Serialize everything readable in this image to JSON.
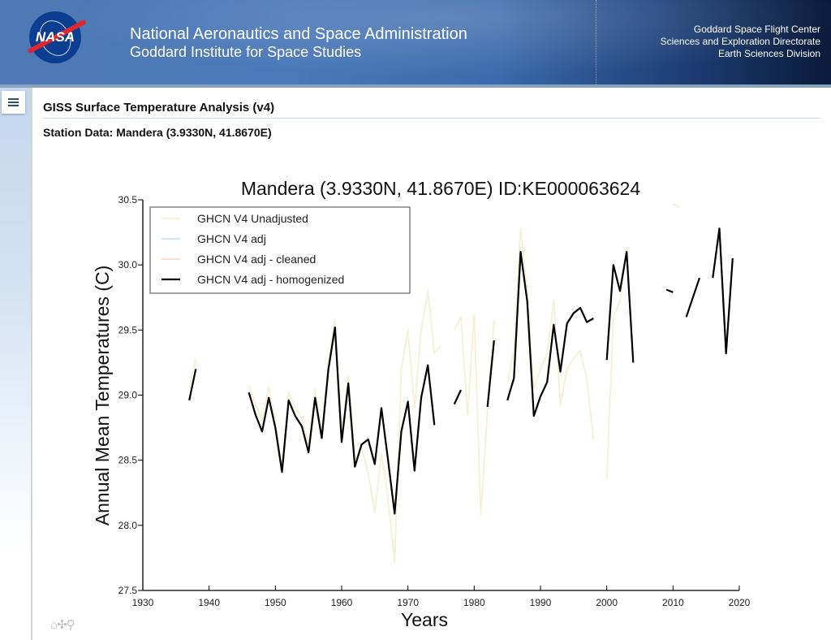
{
  "header": {
    "org_title": "National Aeronautics and Space Administration",
    "org_subtitle": "Goddard Institute for Space Studies",
    "logo_text": "NASA",
    "right_lines": [
      "Goddard Space Flight Center",
      "Sciences and Exploration Directorate",
      "Earth Sciences Division"
    ]
  },
  "page": {
    "title": "GISS Surface Temperature Analysis (v4)",
    "station_title": "Station Data: Mandera (3.9330N, 41.8670E)",
    "menu_icon": "hamburger-menu-icon"
  },
  "toolbar": {
    "icons": [
      "home-icon",
      "pan-icon",
      "zoom-icon"
    ],
    "home_glyph": "⌂",
    "pan_glyph": "✣",
    "zoom_glyph": "⚲"
  },
  "colors": {
    "unadjusted": "#f5f0d2",
    "adj": "#cfdcf0",
    "cleaned": "#f4d8d0",
    "homogenized": "#000000"
  },
  "chart_data": {
    "type": "line",
    "title": "Mandera (3.9330N, 41.8670E) ID:KE000063624",
    "xlabel": "Years",
    "ylabel": "Annual Mean Temperatures (C)",
    "xlim": [
      1930,
      2020
    ],
    "ylim": [
      27.5,
      30.5
    ],
    "xticks": [
      "1930",
      "1940",
      "1950",
      "1960",
      "1970",
      "1980",
      "1990",
      "2000",
      "2010",
      "2020"
    ],
    "yticks": [
      "27.5",
      "28.0",
      "28.5",
      "29.0",
      "29.5",
      "30.0",
      "30.5"
    ],
    "grid": false,
    "legend_position": "top-left",
    "series": [
      {
        "name": "GHCN V4 Unadjusted",
        "color_key": "unadjusted",
        "segments": [
          [
            [
              1937,
              29.05
            ],
            [
              1938,
              29.28
            ]
          ],
          [
            [
              1946,
              29.08
            ],
            [
              1947,
              28.93
            ],
            [
              1948,
              28.8
            ],
            [
              1949,
              29.06
            ],
            [
              1950,
              28.8
            ],
            [
              1951,
              28.45
            ],
            [
              1952,
              29.02
            ],
            [
              1953,
              28.9
            ],
            [
              1954,
              28.82
            ],
            [
              1955,
              28.62
            ],
            [
              1956,
              29.05
            ],
            [
              1957,
              28.72
            ],
            [
              1958,
              29.26
            ],
            [
              1959,
              29.58
            ],
            [
              1960,
              28.7
            ],
            [
              1961,
              29.15
            ],
            [
              1962,
              28.5
            ],
            [
              1963,
              28.6
            ],
            [
              1964,
              28.4
            ],
            [
              1965,
              28.1
            ],
            [
              1966,
              28.55
            ],
            [
              1967,
              28.2
            ],
            [
              1968,
              27.72
            ],
            [
              1969,
              29.2
            ],
            [
              1970,
              29.5
            ],
            [
              1971,
              28.9
            ],
            [
              1972,
              29.5
            ],
            [
              1973,
              29.8
            ],
            [
              1974,
              29.32
            ],
            [
              1975,
              29.38
            ]
          ],
          [
            [
              1977,
              29.5
            ],
            [
              1978,
              29.6
            ],
            [
              1979,
              28.85
            ],
            [
              1980,
              29.62
            ],
            [
              1981,
              28.08
            ],
            [
              1982,
              28.88
            ],
            [
              1983,
              29.58
            ]
          ],
          [
            [
              1985,
              29.1
            ],
            [
              1986,
              29.35
            ],
            [
              1987,
              30.28
            ],
            [
              1988,
              29.8
            ],
            [
              1989,
              29.05
            ],
            [
              1990,
              29.2
            ],
            [
              1991,
              29.32
            ],
            [
              1992,
              29.73
            ],
            [
              1993,
              28.92
            ],
            [
              1994,
              29.2
            ],
            [
              1995,
              29.28
            ],
            [
              1996,
              29.34
            ],
            [
              1997,
              29.12
            ],
            [
              1998,
              28.66
            ]
          ],
          [
            [
              2000,
              28.35
            ],
            [
              2001,
              29.6
            ],
            [
              2002,
              29.72
            ],
            [
              2003,
              30.14
            ]
          ],
          [
            [
              2010,
              30.47
            ],
            [
              2011,
              30.44
            ]
          ]
        ]
      },
      {
        "name": "GHCN V4 adj",
        "color_key": "adj",
        "segments": []
      },
      {
        "name": "GHCN V4 adj - cleaned",
        "color_key": "cleaned",
        "segments": []
      },
      {
        "name": "GHCN V4 adj - homogenized",
        "color_key": "homogenized",
        "segments": [
          [
            [
              1937,
              28.96
            ],
            [
              1938,
              29.2
            ]
          ],
          [
            [
              1946,
              29.02
            ],
            [
              1947,
              28.85
            ],
            [
              1948,
              28.72
            ],
            [
              1949,
              28.98
            ],
            [
              1950,
              28.75
            ],
            [
              1951,
              28.41
            ],
            [
              1952,
              28.96
            ],
            [
              1953,
              28.84
            ],
            [
              1954,
              28.76
            ],
            [
              1955,
              28.56
            ],
            [
              1956,
              28.98
            ],
            [
              1957,
              28.67
            ],
            [
              1958,
              29.2
            ],
            [
              1959,
              29.52
            ],
            [
              1960,
              28.64
            ],
            [
              1961,
              29.09
            ],
            [
              1962,
              28.45
            ],
            [
              1963,
              28.62
            ],
            [
              1964,
              28.66
            ],
            [
              1965,
              28.47
            ],
            [
              1966,
              28.9
            ],
            [
              1967,
              28.5
            ],
            [
              1968,
              28.09
            ],
            [
              1969,
              28.72
            ],
            [
              1970,
              28.95
            ],
            [
              1971,
              28.42
            ],
            [
              1972,
              28.98
            ],
            [
              1973,
              29.23
            ],
            [
              1974,
              28.77
            ]
          ],
          [
            [
              1977,
              28.93
            ],
            [
              1978,
              29.04
            ]
          ],
          [
            [
              1982,
              28.91
            ],
            [
              1983,
              29.42
            ]
          ],
          [
            [
              1985,
              28.96
            ],
            [
              1986,
              29.13
            ],
            [
              1987,
              30.1
            ],
            [
              1988,
              29.72
            ],
            [
              1989,
              28.84
            ],
            [
              1990,
              28.99
            ],
            [
              1991,
              29.1
            ],
            [
              1992,
              29.54
            ],
            [
              1993,
              29.18
            ],
            [
              1994,
              29.55
            ],
            [
              1995,
              29.63
            ],
            [
              1996,
              29.67
            ],
            [
              1997,
              29.56
            ],
            [
              1998,
              29.59
            ]
          ],
          [
            [
              2000,
              29.27
            ],
            [
              2001,
              30.0
            ],
            [
              2002,
              29.8
            ],
            [
              2003,
              30.1
            ],
            [
              2004,
              29.25
            ]
          ],
          [
            [
              2009,
              29.81
            ],
            [
              2010,
              29.79
            ]
          ],
          [
            [
              2012,
              29.6
            ],
            [
              2013,
              29.75
            ],
            [
              2014,
              29.9
            ]
          ],
          [
            [
              2016,
              29.9
            ],
            [
              2017,
              30.28
            ],
            [
              2018,
              29.32
            ],
            [
              2019,
              30.05
            ]
          ]
        ]
      }
    ]
  }
}
